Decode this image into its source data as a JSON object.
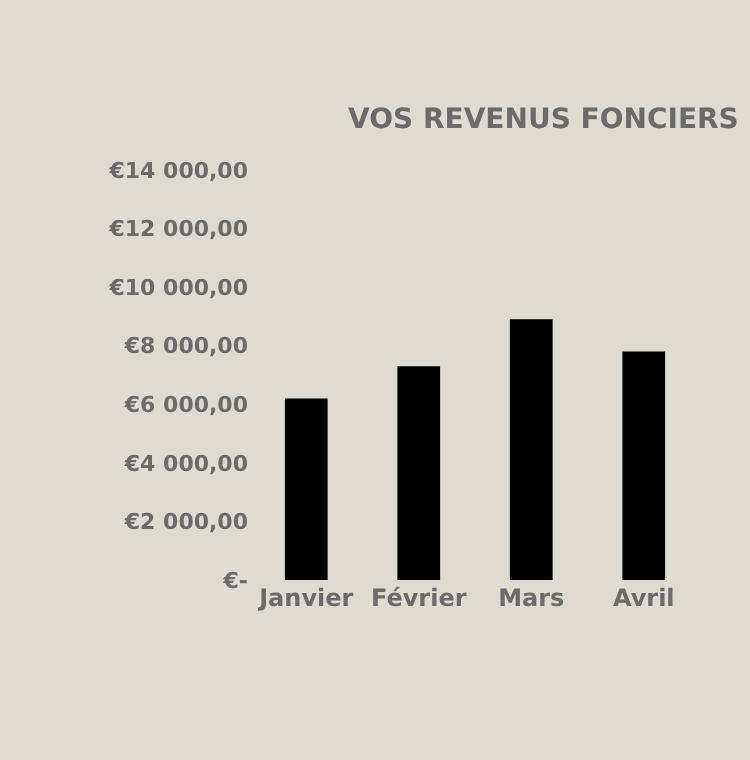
{
  "chart_data": {
    "type": "bar",
    "title": "VOS REVENUS FONCIERS",
    "categories": [
      "Janvier",
      "Février",
      "Mars",
      "Avril"
    ],
    "values": [
      6200,
      7300,
      8900,
      7800
    ],
    "color": "#000000",
    "ylim": [
      0,
      14000
    ],
    "yticks": [
      {
        "value": 0,
        "label": "€-"
      },
      {
        "value": 2000,
        "label": "€2 000,00"
      },
      {
        "value": 4000,
        "label": "€4 000,00"
      },
      {
        "value": 6000,
        "label": "€6 000,00"
      },
      {
        "value": 8000,
        "label": "€8 000,00"
      },
      {
        "value": 10000,
        "label": "€10 000,00"
      },
      {
        "value": 12000,
        "label": "€12 000,00"
      },
      {
        "value": 14000,
        "label": "€14 000,00"
      }
    ],
    "grid": false
  }
}
